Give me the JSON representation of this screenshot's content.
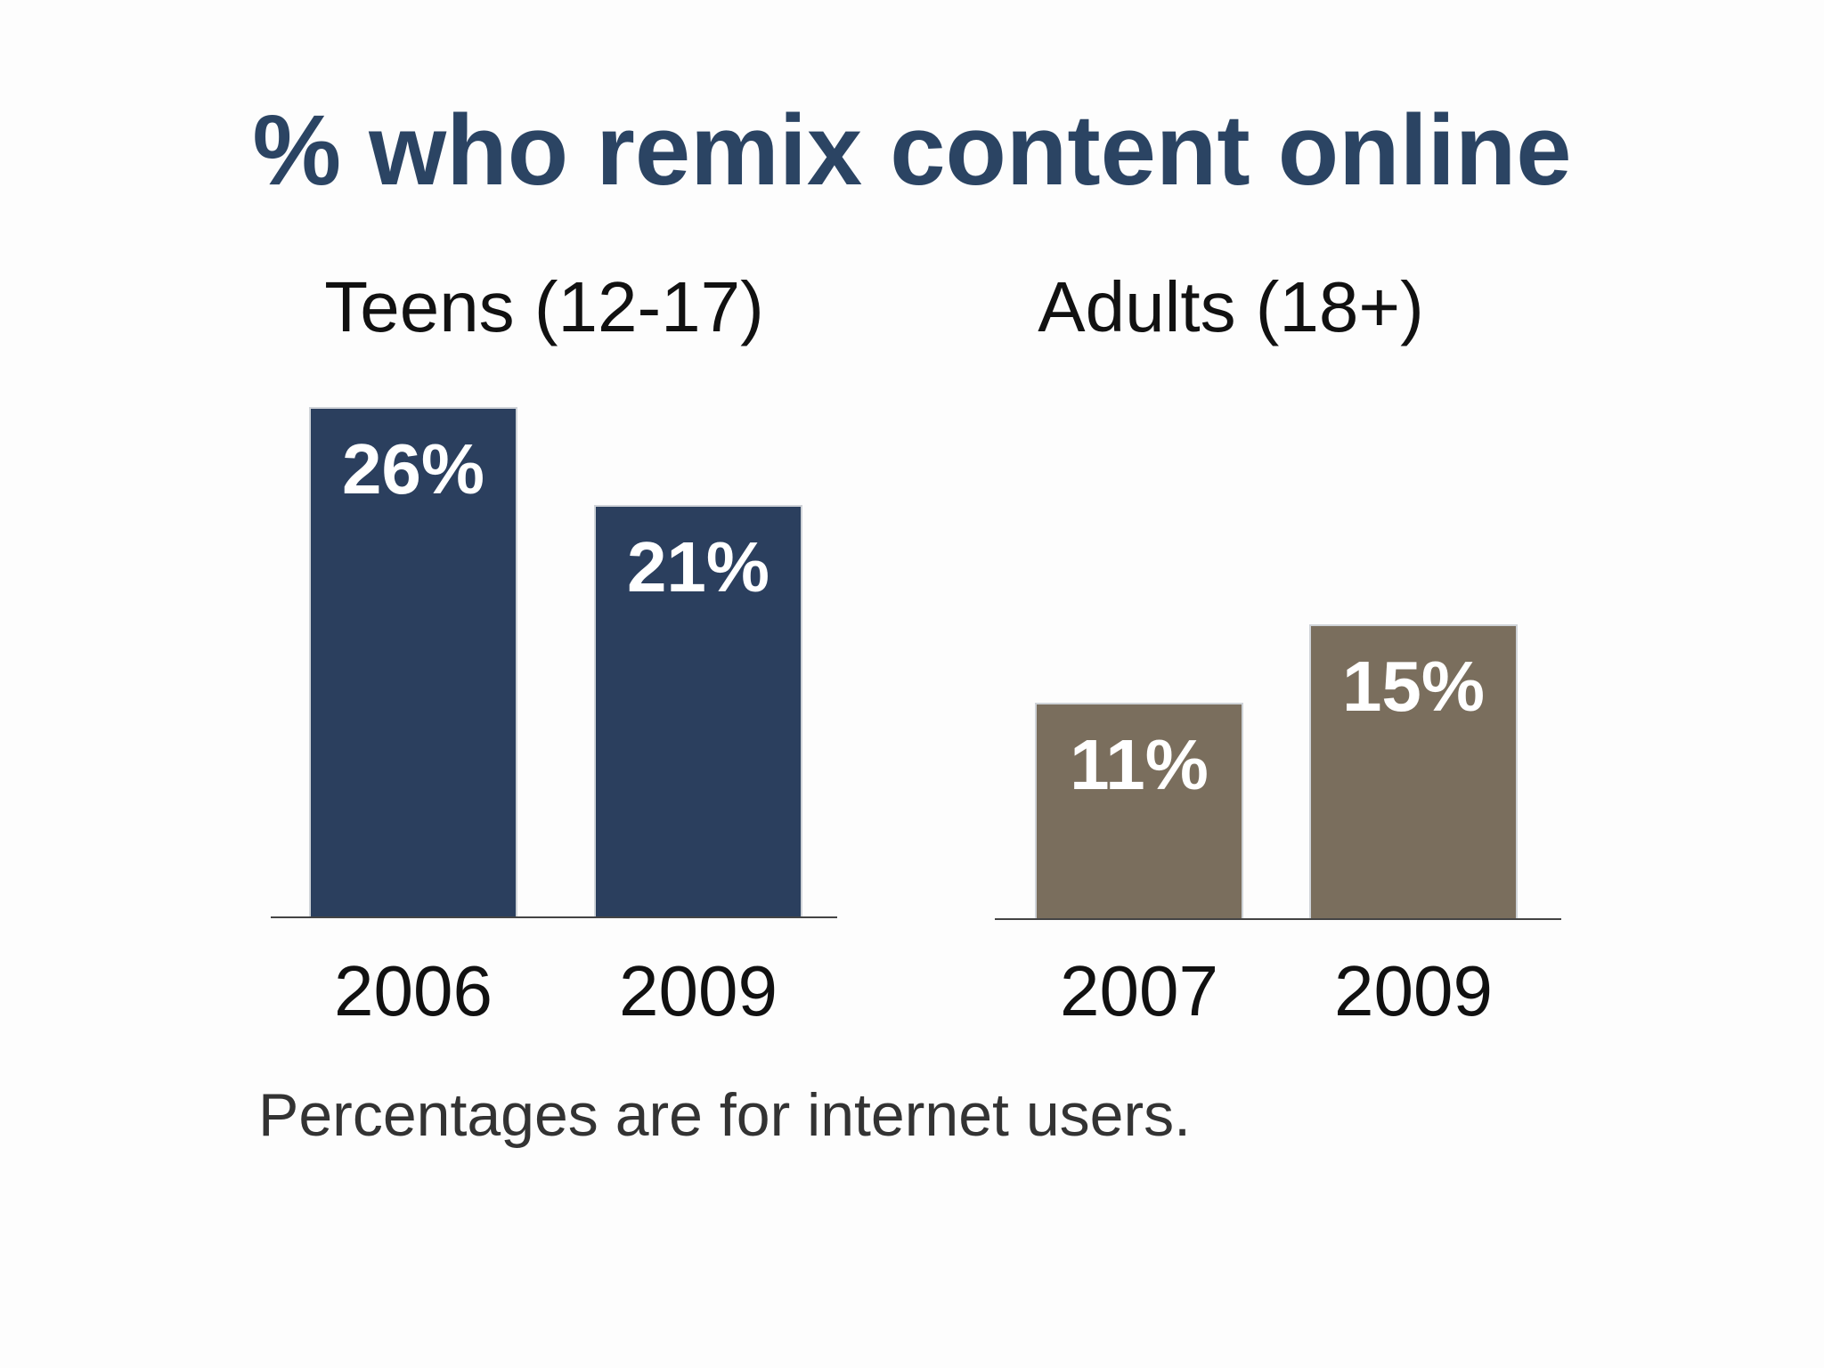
{
  "chart_data": {
    "type": "bar",
    "title": "% who remix content online",
    "footnote": "Percentages are for internet users.",
    "ylim": [
      0,
      30
    ],
    "grid": false,
    "panels": [
      {
        "title": "Teens (12-17)",
        "color": "#2b3f5e",
        "categories": [
          "2006",
          "2009"
        ],
        "values": [
          26,
          21
        ],
        "labels": [
          "26%",
          "21%"
        ]
      },
      {
        "title": "Adults (18+)",
        "color": "#7a6e5d",
        "categories": [
          "2007",
          "2009"
        ],
        "values": [
          11,
          15
        ],
        "labels": [
          "11%",
          "15%"
        ]
      }
    ]
  }
}
